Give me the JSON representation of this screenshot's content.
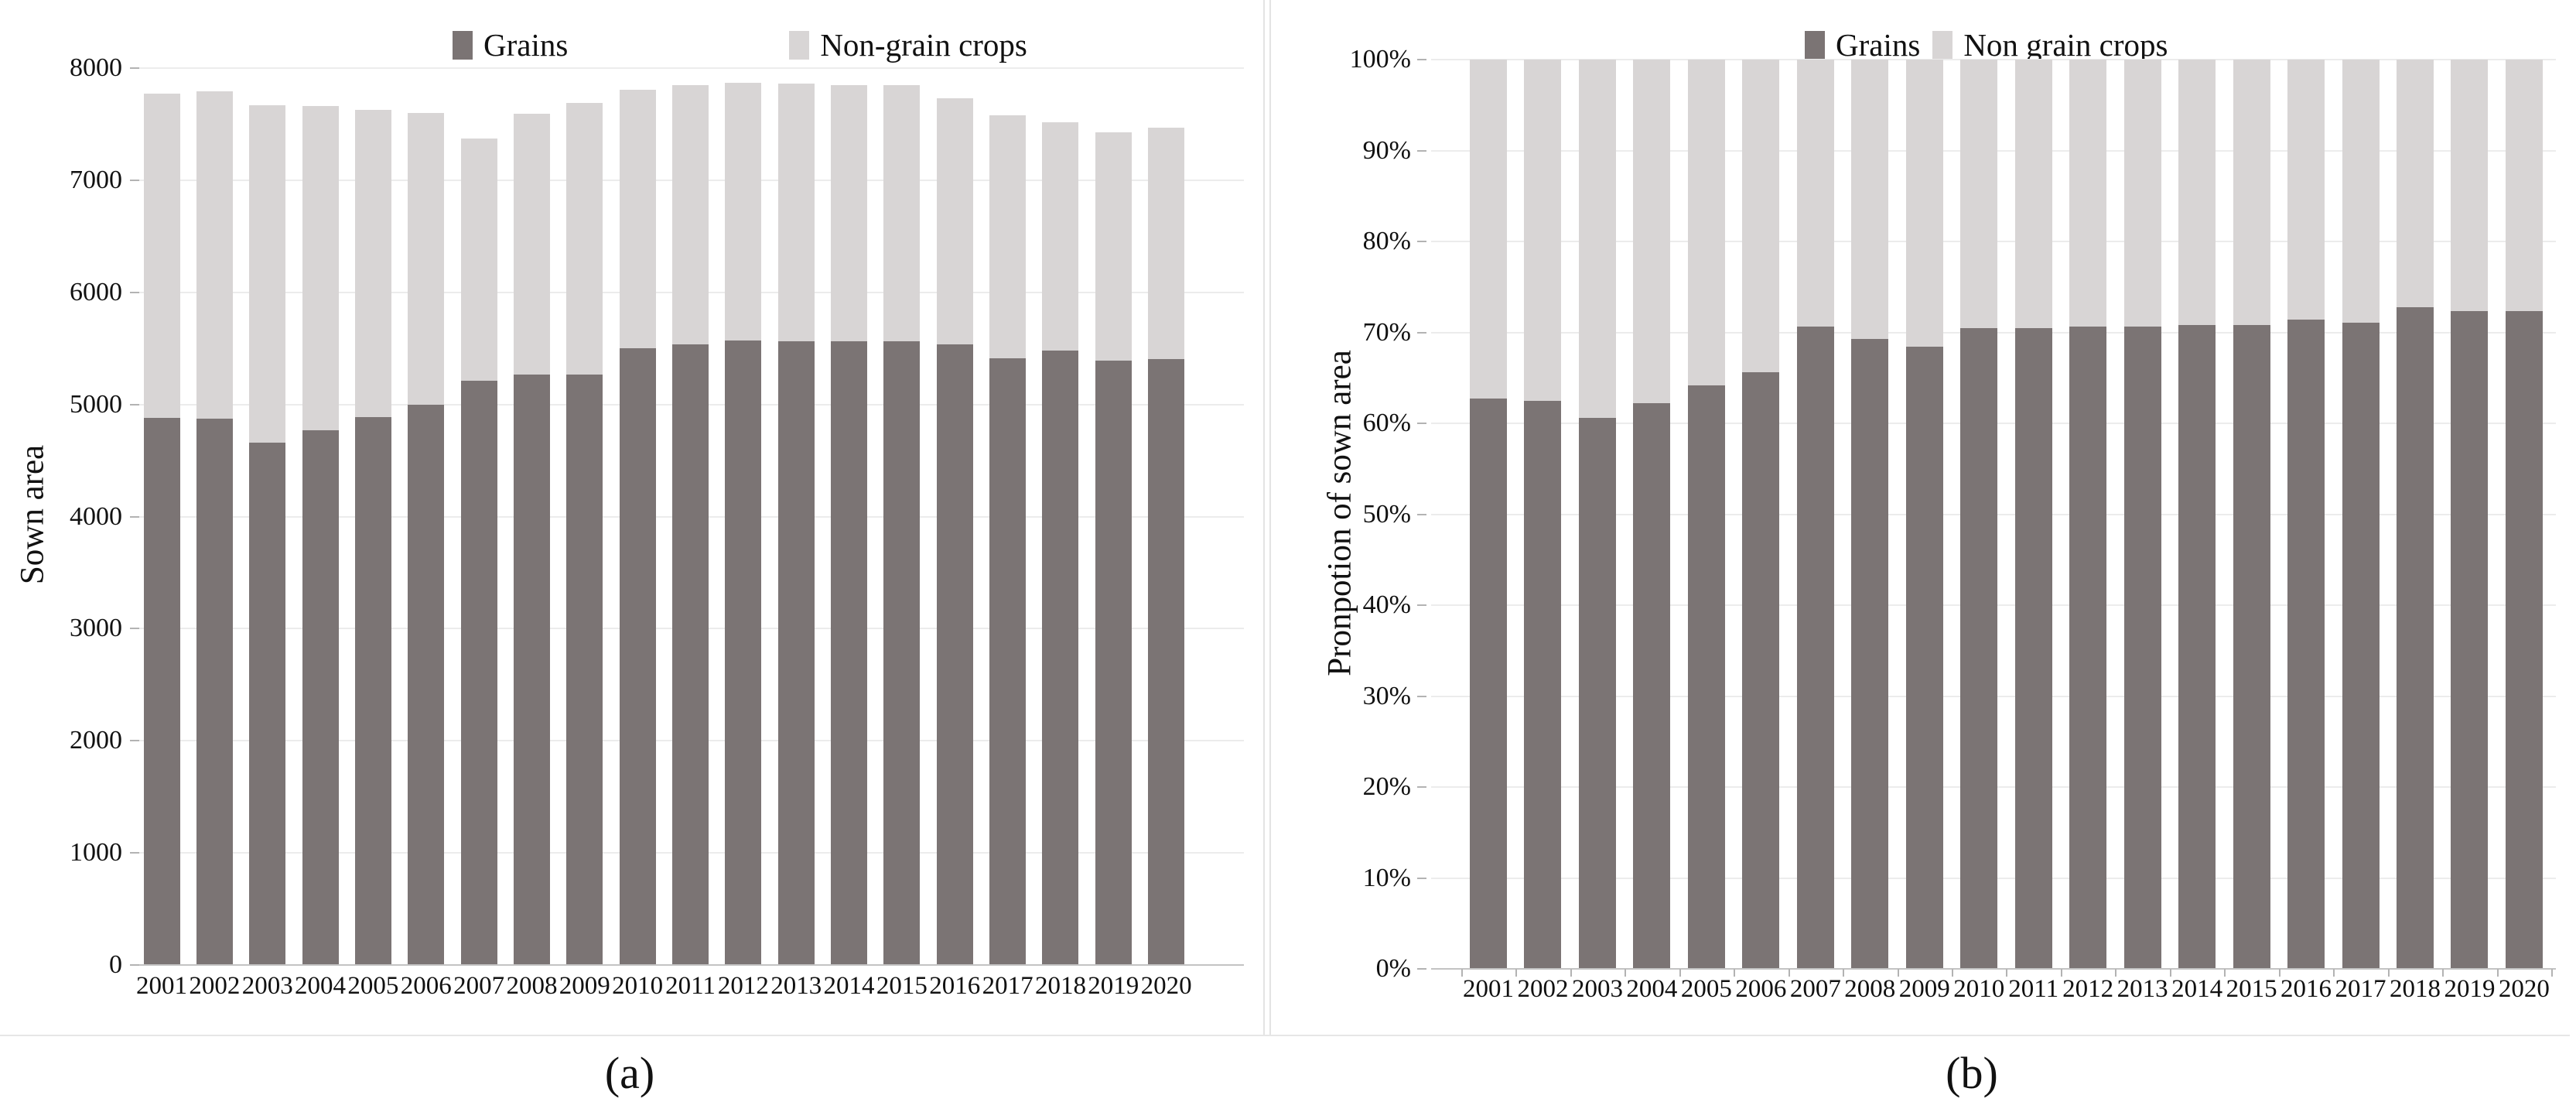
{
  "figure": {
    "caption_a": "(a)",
    "caption_b": "(b)"
  },
  "colors": {
    "grains": "#7b7474",
    "non_grain": "#d8d5d5",
    "gridline": "#ececec",
    "axis_line": "#c3c3c3",
    "text": "#111111"
  },
  "chart_data": [
    {
      "id": "a",
      "type": "bar",
      "stacked": true,
      "title": "",
      "ylabel": "Sown area",
      "xlabel": "",
      "categories": [
        "2001",
        "2002",
        "2003",
        "2004",
        "2005",
        "2006",
        "2007",
        "2008",
        "2009",
        "2010",
        "2011",
        "2012",
        "2013",
        "2014",
        "2015",
        "2016",
        "2017",
        "2018",
        "2019",
        "2020"
      ],
      "series": [
        {
          "name": "Grains",
          "color": "#7b7474",
          "values": [
            4880,
            4870,
            4660,
            4770,
            4890,
            4995,
            5210,
            5265,
            5270,
            5500,
            5535,
            5570,
            5565,
            5565,
            5565,
            5535,
            5410,
            5480,
            5390,
            5405
          ]
        },
        {
          "name": "Non-grain crops",
          "color": "#d8d5d5",
          "values": [
            2890,
            2920,
            3010,
            2895,
            2735,
            2605,
            2165,
            2325,
            2420,
            2310,
            2310,
            2300,
            2300,
            2280,
            2280,
            2195,
            2170,
            2035,
            2040,
            2065
          ]
        }
      ],
      "totals": [
        7770,
        7790,
        7670,
        7665,
        7625,
        7600,
        7375,
        7590,
        7690,
        7810,
        7845,
        7870,
        7865,
        7845,
        7845,
        7730,
        7580,
        7515,
        7430,
        7470
      ],
      "ylim": [
        0,
        8000
      ],
      "ytick_step": 1000,
      "yticks": [
        "0",
        "1000",
        "2000",
        "3000",
        "4000",
        "5000",
        "6000",
        "7000",
        "8000"
      ],
      "grid": true,
      "legend_position": "top"
    },
    {
      "id": "b",
      "type": "bar",
      "stacked": true,
      "percent": true,
      "title": "",
      "ylabel": "Pronpotion of sown area",
      "xlabel": "",
      "categories": [
        "2001",
        "2002",
        "2003",
        "2004",
        "2005",
        "2006",
        "2007",
        "2008",
        "2009",
        "2010",
        "2011",
        "2012",
        "2013",
        "2014",
        "2015",
        "2016",
        "2017",
        "2018",
        "2019",
        "2020"
      ],
      "series": [
        {
          "name": "Grains",
          "color": "#7b7474",
          "values": [
            62.7,
            62.5,
            60.6,
            62.2,
            64.2,
            65.6,
            70.6,
            69.3,
            68.4,
            70.5,
            70.5,
            70.6,
            70.6,
            70.8,
            70.8,
            71.4,
            71.1,
            72.8,
            72.3,
            72.3
          ]
        },
        {
          "name": "Non grain crops",
          "color": "#d8d5d5",
          "values": [
            37.3,
            37.5,
            39.4,
            37.8,
            35.8,
            34.4,
            29.4,
            30.7,
            31.6,
            29.5,
            29.5,
            29.4,
            29.4,
            29.2,
            29.2,
            28.6,
            28.9,
            27.2,
            27.7,
            27.7
          ]
        }
      ],
      "ylim": [
        0,
        100
      ],
      "ytick_step": 10,
      "yticks": [
        "0%",
        "10%",
        "20%",
        "30%",
        "40%",
        "50%",
        "60%",
        "70%",
        "80%",
        "90%",
        "100%"
      ],
      "grid": true,
      "legend_position": "top"
    }
  ]
}
